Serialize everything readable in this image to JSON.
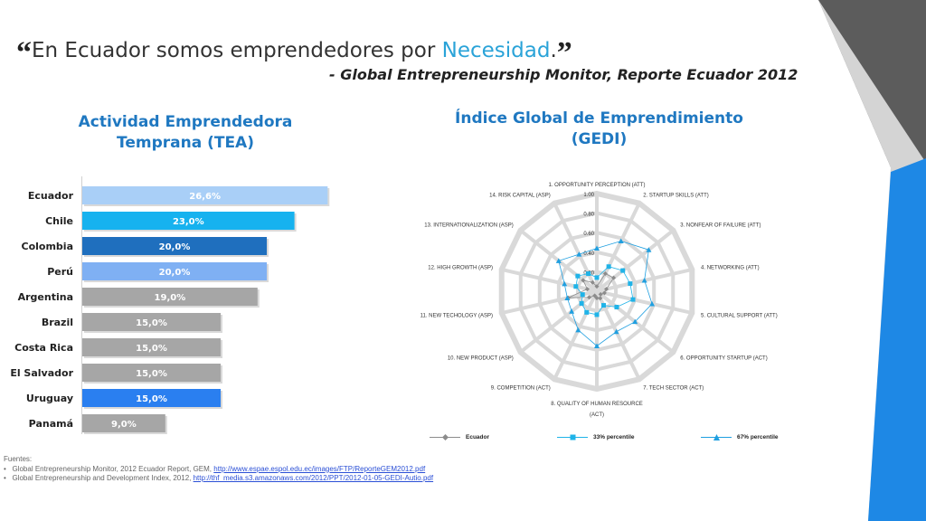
{
  "header": {
    "quote_open": "“",
    "quote_text": "En Ecuador somos emprendedores por ",
    "quote_highlight": "Necesidad",
    "quote_end": ".",
    "quote_close": "”",
    "source": "- Global Entrepreneurship Monitor, Reporte Ecuador 2012"
  },
  "colors": {
    "accent": "#2aa3d8",
    "title_blue": "#1f78c1",
    "gray_bar": "#a6a6a6",
    "corner_dark": "#5c5c5c",
    "corner_blue": "#1e88e5"
  },
  "chart_data": [
    {
      "type": "bar",
      "orientation": "horizontal",
      "title": "Actividad Emprendedora Temprana (TEA)",
      "categories": [
        "Ecuador",
        "Chile",
        "Colombia",
        "Perú",
        "Argentina",
        "Brazil",
        "Costa Rica",
        "El Salvador",
        "Uruguay",
        "Panamá"
      ],
      "values": [
        26.6,
        23.0,
        20.0,
        20.0,
        19.0,
        15.0,
        15.0,
        15.0,
        15.0,
        9.0
      ],
      "data_labels": [
        "26,6%",
        "23,0%",
        "20,0%",
        "20,0%",
        "19,0%",
        "15,0%",
        "15,0%",
        "15,0%",
        "15,0%",
        "9,0%"
      ],
      "bar_colors": [
        "#a9cff7",
        "#16b2ef",
        "#1f6fbe",
        "#7fb0f3",
        "#a6a6a6",
        "#a6a6a6",
        "#a6a6a6",
        "#a6a6a6",
        "#2a7ff0",
        "#a6a6a6"
      ],
      "xlim": [
        0,
        30
      ]
    },
    {
      "type": "radar",
      "title": "Índice Global de Emprendimiento (GEDI)",
      "axes": [
        "1. OPPORTUNITY PERCEPTION (ATT)",
        "2. STARTUP SKILLS  (ATT)",
        "3. NONFEAR OF FAILURE (ATT)",
        "4. NETWORKING (ATT)",
        "5. CULTURAL SUPPORT (ATT)",
        "6. OPPORTUNITY STARTUP (ACT)",
        "7. TECH SECTOR (ACT)",
        "8. QUALITY OF HUMAN RESOURCE (ACT)",
        "9. COMPETITION (ACT)",
        "10. NEW PRODUCT (ASP)",
        "11. NEW TECHOLOGY (ASP)",
        "12. HIGH GROWTH (ASP)",
        "13. INTERNATIONALIZATION (ASP)",
        "14. RISK CAPITAL (ASP)"
      ],
      "ticks": [
        "0.20",
        "0.40",
        "0.60",
        "0.80",
        "1.00"
      ],
      "range": [
        0,
        1
      ],
      "series": [
        {
          "name": "Ecuador",
          "color": "#8c8c8c",
          "marker": "diamond",
          "values": [
            0.05,
            0.2,
            0.22,
            0.1,
            0.08,
            0.05,
            0.08,
            0.07,
            0.05,
            0.1,
            0.3,
            0.1,
            0.18,
            0.1
          ]
        },
        {
          "name": "33% percentile",
          "color": "#1fb3e8",
          "marker": "square",
          "values": [
            0.14,
            0.28,
            0.34,
            0.35,
            0.38,
            0.26,
            0.16,
            0.24,
            0.24,
            0.2,
            0.15,
            0.22,
            0.25,
            0.2
          ]
        },
        {
          "name": "67% percentile",
          "color": "#1f9fe0",
          "marker": "triangle",
          "values": [
            0.44,
            0.57,
            0.68,
            0.5,
            0.58,
            0.5,
            0.46,
            0.56,
            0.44,
            0.33,
            0.31,
            0.34,
            0.5,
            0.42
          ]
        }
      ]
    }
  ],
  "footer": {
    "label": "Fuentes:",
    "items": [
      {
        "text": "Global Entrepreneurship Monitor, 2012 Ecuador Report, GEM, ",
        "link": "http://www.espae.espol.edu.ec/images/FTP/ReporteGEM2012.pdf"
      },
      {
        "text": "Global Entrepreneurship and Development Index, 2012, ",
        "link": "http://thf_media.s3.amazonaws.com/2012/PPT/2012-01-05-GEDI-Autio.pdf"
      }
    ]
  }
}
